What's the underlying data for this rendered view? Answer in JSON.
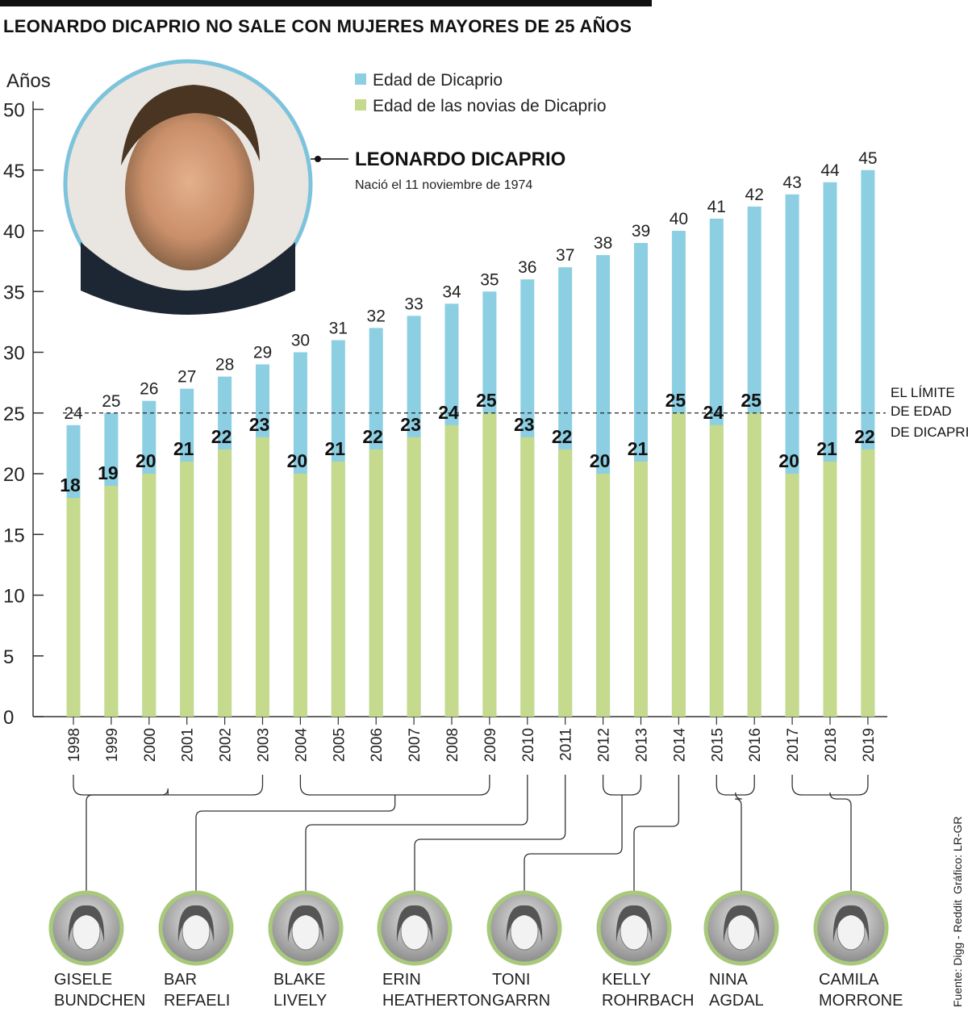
{
  "title": "LEONARDO DICAPRIO NO SALE CON MUJERES MAYORES DE 25 AÑOS",
  "colors": {
    "dicaprio": "#8ccfe3",
    "girlfriends": "#c5da8c",
    "ring": "#7cc3dc",
    "ring_green": "#a8c97c"
  },
  "portrait": {
    "name": "LEONARDO DICAPRIO",
    "born": "Nació el 11 noviembre de 1974"
  },
  "limit_label": [
    "EL LÍMITE",
    "DE EDAD",
    "DE DICAPRIO"
  ],
  "girlfriends": [
    {
      "first": "GISELE",
      "last": "BUNDCHEN",
      "from": 1998,
      "to": 2003
    },
    {
      "first": "BAR",
      "last": "REFAELI",
      "from": 2004,
      "to": 2009
    },
    {
      "first": "BLAKE",
      "last": "LIVELY",
      "from": 2010,
      "to": 2010
    },
    {
      "first": "ERIN",
      "last": "HEATHERTON",
      "from": 2011,
      "to": 2011
    },
    {
      "first": "TONI",
      "last": "GARRN",
      "from": 2012,
      "to": 2013
    },
    {
      "first": "KELLY",
      "last": "ROHRBACH",
      "from": 2014,
      "to": 2014
    },
    {
      "first": "NINA",
      "last": "AGDAL",
      "from": 2015,
      "to": 2016
    },
    {
      "first": "CAMILA",
      "last": "MORRONE",
      "from": 2017,
      "to": 2019
    }
  ],
  "credits": {
    "grafico": "Gráfico: LR-GR",
    "fuente": "Fuente: Digg - Reddit"
  },
  "chart_data": {
    "type": "bar",
    "ylabel": "Años",
    "ylim": [
      0,
      50
    ],
    "yticks": [
      0,
      5,
      10,
      15,
      20,
      25,
      30,
      35,
      40,
      45,
      50
    ],
    "reference_line": 25,
    "categories": [
      "1998",
      "1999",
      "2000",
      "2001",
      "2002",
      "2003",
      "2004",
      "2005",
      "2006",
      "2007",
      "2008",
      "2009",
      "2010",
      "2011",
      "2012",
      "2013",
      "2014",
      "2015",
      "2016",
      "2017",
      "2018",
      "2019"
    ],
    "series": [
      {
        "name": "Edad de Dicaprio",
        "values": [
          24,
          25,
          26,
          27,
          28,
          29,
          30,
          31,
          32,
          33,
          34,
          35,
          36,
          37,
          38,
          39,
          40,
          41,
          42,
          43,
          44,
          45
        ]
      },
      {
        "name": "Edad de las novias de Dicaprio",
        "values": [
          18,
          19,
          20,
          21,
          22,
          23,
          20,
          21,
          22,
          23,
          24,
          25,
          23,
          22,
          20,
          21,
          25,
          24,
          25,
          20,
          21,
          22
        ]
      }
    ]
  }
}
